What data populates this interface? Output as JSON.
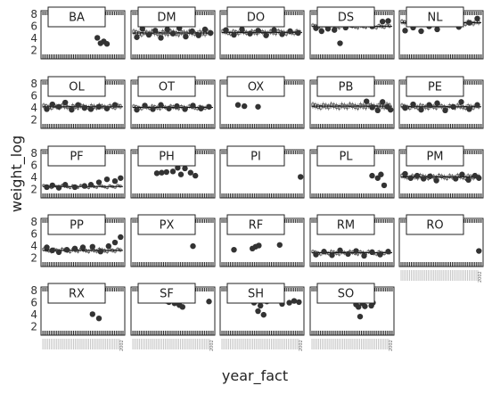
{
  "chart_data": {
    "type": "box",
    "xlabel": "year_fact",
    "ylabel": "weight_log",
    "ylim": [
      1.8,
      8.6
    ],
    "yticks": [
      2,
      4,
      6,
      8
    ],
    "x_end_label": "2002",
    "grid": false,
    "facets": [
      {
        "label": "BA",
        "points": [
          [
            0.68,
            4.1
          ],
          [
            0.72,
            3.2
          ],
          [
            0.76,
            3.5
          ],
          [
            0.8,
            3.1
          ]
        ]
      },
      {
        "label": "DM",
        "median": 4.9,
        "spread": 1.2,
        "points": [
          [
            0.05,
            4.2
          ],
          [
            0.12,
            5.6
          ],
          [
            0.2,
            4.6
          ],
          [
            0.28,
            5.3
          ],
          [
            0.35,
            4.1
          ],
          [
            0.43,
            5.5
          ],
          [
            0.5,
            4.8
          ],
          [
            0.58,
            5.7
          ],
          [
            0.66,
            4.3
          ],
          [
            0.74,
            5.2
          ],
          [
            0.82,
            4.5
          ],
          [
            0.9,
            5.5
          ],
          [
            0.97,
            4.9
          ]
        ]
      },
      {
        "label": "DO",
        "median": 5.0,
        "spread": 1.0,
        "points": [
          [
            0.05,
            5.4
          ],
          [
            0.15,
            4.6
          ],
          [
            0.25,
            5.5
          ],
          [
            0.35,
            4.8
          ],
          [
            0.45,
            5.3
          ],
          [
            0.55,
            4.5
          ],
          [
            0.65,
            5.4
          ],
          [
            0.75,
            4.7
          ],
          [
            0.85,
            5.2
          ],
          [
            0.95,
            4.9
          ]
        ]
      },
      {
        "label": "DS",
        "median": 6.0,
        "spread": 0.8,
        "points": [
          [
            0.05,
            5.7
          ],
          [
            0.12,
            5.2
          ],
          [
            0.2,
            5.6
          ],
          [
            0.28,
            5.4
          ],
          [
            0.35,
            3.2
          ],
          [
            0.42,
            5.8
          ],
          [
            0.5,
            6.2
          ],
          [
            0.62,
            6.3
          ],
          [
            0.75,
            6.0
          ],
          [
            0.88,
            6.8
          ],
          [
            0.95,
            6.9
          ]
        ]
      },
      {
        "label": "NL",
        "median": 6.6,
        "spread": 1.0,
        "points": [
          [
            0.05,
            5.3
          ],
          [
            0.15,
            5.8
          ],
          [
            0.25,
            5.2
          ],
          [
            0.35,
            6.0
          ],
          [
            0.45,
            5.5
          ],
          [
            0.6,
            6.4
          ],
          [
            0.72,
            5.9
          ],
          [
            0.85,
            6.6
          ],
          [
            0.95,
            7.3
          ]
        ]
      },
      {
        "label": "OL",
        "median": 4.2,
        "spread": 1.0,
        "points": [
          [
            0.05,
            3.8
          ],
          [
            0.12,
            4.6
          ],
          [
            0.2,
            4.2
          ],
          [
            0.28,
            4.9
          ],
          [
            0.36,
            3.7
          ],
          [
            0.44,
            4.5
          ],
          [
            0.52,
            4.0
          ],
          [
            0.6,
            3.8
          ],
          [
            0.7,
            4.2
          ],
          [
            0.8,
            3.9
          ],
          [
            0.9,
            4.5
          ]
        ]
      },
      {
        "label": "OT",
        "median": 4.1,
        "spread": 0.8,
        "points": [
          [
            0.05,
            3.7
          ],
          [
            0.15,
            4.4
          ],
          [
            0.25,
            3.8
          ],
          [
            0.35,
            4.5
          ],
          [
            0.45,
            3.9
          ],
          [
            0.55,
            4.3
          ],
          [
            0.65,
            3.8
          ],
          [
            0.75,
            4.4
          ],
          [
            0.85,
            3.9
          ],
          [
            0.95,
            4.2
          ]
        ]
      },
      {
        "label": "OX",
        "points": [
          [
            0.2,
            4.5
          ],
          [
            0.28,
            4.3
          ],
          [
            0.45,
            4.2
          ]
        ]
      },
      {
        "label": "PB",
        "median": 4.3,
        "spread": 1.2,
        "points": [
          [
            0.68,
            5.1
          ],
          [
            0.75,
            4.1
          ],
          [
            0.82,
            3.6
          ],
          [
            0.88,
            5.0
          ],
          [
            0.94,
            4.2
          ],
          [
            0.98,
            3.7
          ]
        ]
      },
      {
        "label": "PE",
        "median": 4.2,
        "spread": 1.0,
        "points": [
          [
            0.05,
            4.0
          ],
          [
            0.15,
            4.6
          ],
          [
            0.25,
            3.7
          ],
          [
            0.35,
            4.5
          ],
          [
            0.45,
            4.8
          ],
          [
            0.55,
            3.6
          ],
          [
            0.65,
            4.2
          ],
          [
            0.75,
            5.0
          ],
          [
            0.85,
            3.8
          ],
          [
            0.95,
            4.5
          ]
        ]
      },
      {
        "label": "PF",
        "median": 2.5,
        "spread": 0.6,
        "points": [
          [
            0.05,
            2.4
          ],
          [
            0.12,
            2.7
          ],
          [
            0.2,
            2.3
          ],
          [
            0.28,
            2.8
          ],
          [
            0.4,
            2.4
          ],
          [
            0.52,
            2.6
          ],
          [
            0.6,
            2.8
          ],
          [
            0.7,
            3.2
          ],
          [
            0.8,
            3.7
          ],
          [
            0.9,
            3.4
          ],
          [
            0.97,
            3.9
          ]
        ]
      },
      {
        "label": "PH",
        "points": [
          [
            0.3,
            4.7
          ],
          [
            0.36,
            4.8
          ],
          [
            0.42,
            4.9
          ],
          [
            0.5,
            5.0
          ],
          [
            0.56,
            5.6
          ],
          [
            0.6,
            4.5
          ],
          [
            0.65,
            5.5
          ],
          [
            0.72,
            4.8
          ],
          [
            0.78,
            4.3
          ]
        ]
      },
      {
        "label": "PI",
        "points": [
          [
            0.98,
            4.1
          ]
        ]
      },
      {
        "label": "PL",
        "points": [
          [
            0.75,
            4.3
          ],
          [
            0.82,
            3.9
          ],
          [
            0.86,
            4.5
          ],
          [
            0.9,
            2.7
          ]
        ]
      },
      {
        "label": "PM",
        "median": 4.1,
        "spread": 1.0,
        "points": [
          [
            0.05,
            4.6
          ],
          [
            0.12,
            3.9
          ],
          [
            0.2,
            4.3
          ],
          [
            0.28,
            3.8
          ],
          [
            0.36,
            4.2
          ],
          [
            0.44,
            3.5
          ],
          [
            0.68,
            3.8
          ],
          [
            0.76,
            4.5
          ],
          [
            0.84,
            3.6
          ],
          [
            0.92,
            4.3
          ],
          [
            0.97,
            3.9
          ]
        ]
      },
      {
        "label": "PP",
        "median": 3.3,
        "spread": 0.8,
        "points": [
          [
            0.05,
            3.8
          ],
          [
            0.12,
            3.3
          ],
          [
            0.2,
            3.0
          ],
          [
            0.3,
            3.4
          ],
          [
            0.4,
            3.6
          ],
          [
            0.5,
            3.8
          ],
          [
            0.62,
            3.9
          ],
          [
            0.72,
            3.1
          ],
          [
            0.82,
            4.0
          ],
          [
            0.9,
            4.6
          ],
          [
            0.97,
            5.5
          ]
        ]
      },
      {
        "label": "PX",
        "points": [
          [
            0.75,
            4.0
          ]
        ]
      },
      {
        "label": "RF",
        "points": [
          [
            0.15,
            3.4
          ],
          [
            0.38,
            3.6
          ],
          [
            0.42,
            3.9
          ],
          [
            0.46,
            4.1
          ],
          [
            0.72,
            4.2
          ]
        ]
      },
      {
        "label": "RM",
        "median": 2.9,
        "spread": 0.8,
        "points": [
          [
            0.05,
            2.6
          ],
          [
            0.15,
            3.1
          ],
          [
            0.25,
            2.5
          ],
          [
            0.35,
            3.3
          ],
          [
            0.45,
            2.7
          ],
          [
            0.55,
            3.2
          ],
          [
            0.65,
            2.4
          ],
          [
            0.75,
            3.0
          ],
          [
            0.85,
            2.6
          ],
          [
            0.95,
            3.1
          ]
        ]
      },
      {
        "label": "RO",
        "points": [
          [
            0.97,
            3.2
          ]
        ]
      },
      {
        "label": "RX",
        "points": [
          [
            0.62,
            4.1
          ],
          [
            0.7,
            3.4
          ]
        ]
      },
      {
        "label": "SF",
        "points": [
          [
            0.42,
            6.3
          ],
          [
            0.45,
            6.1
          ],
          [
            0.48,
            6.4
          ],
          [
            0.52,
            5.9
          ],
          [
            0.55,
            6.2
          ],
          [
            0.58,
            5.6
          ],
          [
            0.62,
            5.3
          ],
          [
            0.95,
            6.2
          ]
        ]
      },
      {
        "label": "SH",
        "points": [
          [
            0.18,
            6.6
          ],
          [
            0.4,
            6.0
          ],
          [
            0.45,
            4.6
          ],
          [
            0.48,
            5.5
          ],
          [
            0.52,
            4.0
          ],
          [
            0.56,
            6.2
          ],
          [
            0.75,
            5.8
          ],
          [
            0.84,
            6.0
          ],
          [
            0.9,
            6.3
          ],
          [
            0.96,
            6.1
          ]
        ]
      },
      {
        "label": "SO",
        "points": [
          [
            0.55,
            5.7
          ],
          [
            0.58,
            5.3
          ],
          [
            0.6,
            3.7
          ],
          [
            0.63,
            5.9
          ],
          [
            0.66,
            5.4
          ],
          [
            0.74,
            5.5
          ],
          [
            0.76,
            6.0
          ]
        ]
      }
    ]
  }
}
